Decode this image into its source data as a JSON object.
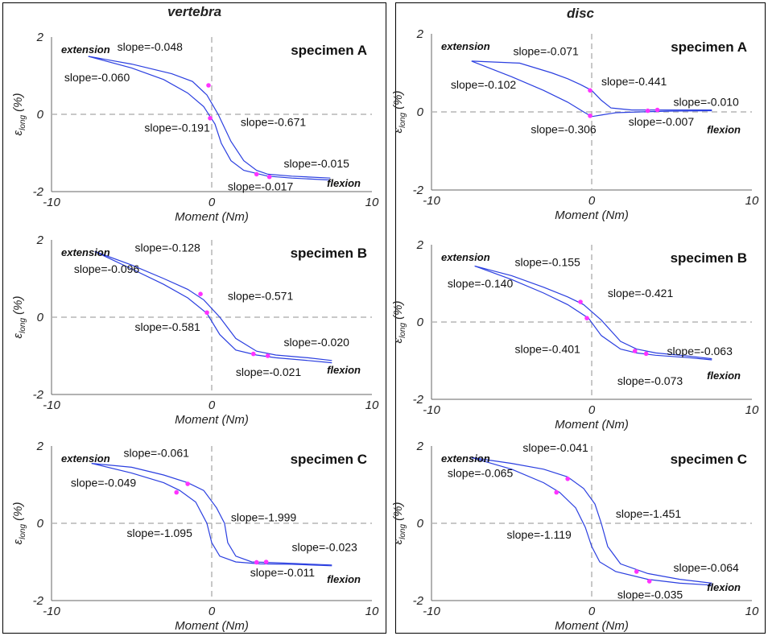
{
  "colors": {
    "vertebra_bg": "#d6e8f6",
    "vertebra_border": "#3d8fcc",
    "disc_bg": "#d9edd2",
    "disc_border": "#6aa84f",
    "curve": "#2b3fe0",
    "marker": "#ff33ff",
    "zero_line": "#b5b5b5",
    "axis": "#666666"
  },
  "columns": [
    {
      "title": "vertebra"
    },
    {
      "title": "disc"
    }
  ],
  "chart_data": [
    {
      "type": "line",
      "column": "vertebra",
      "specimen": "specimen A",
      "xlabel": "Moment (Nm)",
      "ylabel_main": "ε",
      "ylabel_sub": "long",
      "ylabel_unit": " (%)",
      "xlim": [
        -10,
        10
      ],
      "ylim": [
        -2,
        2
      ],
      "xticks": [
        "-10",
        "0",
        "10"
      ],
      "yticks": [
        "2",
        "0",
        "-2"
      ],
      "labels": {
        "extension": "extension",
        "flexion": "flexion"
      },
      "series": [
        {
          "x": [
            -7.7,
            -5,
            -2.5,
            -1.2,
            -0.3,
            0.4,
            1.2,
            2.0,
            2.8,
            3.5,
            5,
            7.4
          ],
          "y": [
            1.5,
            1.3,
            1.05,
            0.85,
            0.5,
            0.0,
            -0.7,
            -1.2,
            -1.45,
            -1.55,
            -1.6,
            -1.65
          ]
        },
        {
          "x": [
            -7.7,
            -5,
            -3,
            -1.5,
            -0.5,
            0.2,
            0.6,
            1.2,
            2.0,
            3.5,
            5,
            7.4
          ],
          "y": [
            1.5,
            1.2,
            0.9,
            0.55,
            0.2,
            -0.25,
            -0.75,
            -1.2,
            -1.45,
            -1.6,
            -1.65,
            -1.7
          ]
        }
      ],
      "markers": [
        {
          "x": -0.2,
          "y": 0.75
        },
        {
          "x": -0.1,
          "y": -0.1
        },
        {
          "x": 2.8,
          "y": -1.55
        },
        {
          "x": 3.6,
          "y": -1.62
        }
      ],
      "slopes": [
        {
          "text": "slope=-0.048",
          "x": -5.9,
          "y": 1.65
        },
        {
          "text": "slope=-0.060",
          "x": -9.2,
          "y": 0.85
        },
        {
          "text": "slope=-0.191",
          "x": -4.2,
          "y": -0.45
        },
        {
          "text": "slope=-0.671",
          "x": 1.8,
          "y": -0.3
        },
        {
          "text": "slope=-0.015",
          "x": 4.5,
          "y": -1.38
        },
        {
          "text": "slope=-0.017",
          "x": 1.0,
          "y": -1.97
        }
      ]
    },
    {
      "type": "line",
      "column": "disc",
      "specimen": "specimen A",
      "xlabel": "Moment (Nm)",
      "ylabel_main": "ε",
      "ylabel_sub": "long",
      "ylabel_unit": " (%)",
      "xlim": [
        -10,
        10
      ],
      "ylim": [
        -2,
        2
      ],
      "xticks": [
        "-10",
        "0",
        "10"
      ],
      "yticks": [
        "2",
        "0",
        "-2"
      ],
      "labels": {
        "extension": "extension",
        "flexion": "flexion"
      },
      "series": [
        {
          "x": [
            -7.5,
            -4.5,
            -2.5,
            -1.5,
            -0.7,
            0.0,
            0.6,
            1.2,
            2.5,
            4,
            7.5
          ],
          "y": [
            1.3,
            1.25,
            1.0,
            0.85,
            0.7,
            0.55,
            0.3,
            0.1,
            0.05,
            0.05,
            0.05
          ]
        },
        {
          "x": [
            -7.5,
            -5,
            -3,
            -1.5,
            -0.5,
            0.0,
            0.6,
            1.5,
            3,
            5,
            7.5
          ],
          "y": [
            1.3,
            0.9,
            0.55,
            0.25,
            0.0,
            -0.12,
            -0.08,
            -0.02,
            0.0,
            0.02,
            0.03
          ]
        }
      ],
      "markers": [
        {
          "x": -0.1,
          "y": 0.55
        },
        {
          "x": -0.1,
          "y": -0.1
        },
        {
          "x": 3.5,
          "y": 0.03
        },
        {
          "x": 4.1,
          "y": 0.05
        }
      ],
      "slopes": [
        {
          "text": "slope=-0.071",
          "x": -4.9,
          "y": 1.45
        },
        {
          "text": "slope=-0.102",
          "x": -8.8,
          "y": 0.6
        },
        {
          "text": "slope=-0.441",
          "x": 0.6,
          "y": 0.68
        },
        {
          "text": "slope=-0.010",
          "x": 5.1,
          "y": 0.15
        },
        {
          "text": "slope=-0.306",
          "x": -3.8,
          "y": -0.55
        },
        {
          "text": "slope=-0.007",
          "x": 2.3,
          "y": -0.35
        }
      ]
    },
    {
      "type": "line",
      "column": "vertebra",
      "specimen": "specimen B",
      "xlabel": "Moment (Nm)",
      "ylabel_main": "ε",
      "ylabel_sub": "long",
      "ylabel_unit": " (%)",
      "xlim": [
        -10,
        10
      ],
      "ylim": [
        -2,
        2
      ],
      "xticks": [
        "-10",
        "0",
        "10"
      ],
      "yticks": [
        "2",
        "0",
        "-2"
      ],
      "labels": {
        "extension": "extension",
        "flexion": "flexion"
      },
      "series": [
        {
          "x": [
            -7.3,
            -5,
            -3,
            -1.5,
            -0.5,
            0.5,
            1.5,
            2.8,
            4,
            6,
            7.5
          ],
          "y": [
            1.7,
            1.35,
            1.0,
            0.72,
            0.45,
            0.0,
            -0.55,
            -0.88,
            -0.98,
            -1.05,
            -1.12
          ]
        },
        {
          "x": [
            -7.3,
            -5,
            -3,
            -1.5,
            -0.3,
            0.5,
            1.5,
            2.8,
            4,
            6,
            7.5
          ],
          "y": [
            1.7,
            1.25,
            0.85,
            0.5,
            0.1,
            -0.45,
            -0.85,
            -0.98,
            -1.05,
            -1.12,
            -1.18
          ]
        }
      ],
      "markers": [
        {
          "x": -0.7,
          "y": 0.6
        },
        {
          "x": -0.3,
          "y": 0.12
        },
        {
          "x": 2.6,
          "y": -0.95
        },
        {
          "x": 3.5,
          "y": -1.0
        }
      ],
      "slopes": [
        {
          "text": "slope=-0.128",
          "x": -4.8,
          "y": 1.7
        },
        {
          "text": "slope=-0.096",
          "x": -8.6,
          "y": 1.15
        },
        {
          "text": "slope=-0.571",
          "x": 1.0,
          "y": 0.45
        },
        {
          "text": "slope=-0.581",
          "x": -4.8,
          "y": -0.35
        },
        {
          "text": "slope=-0.020",
          "x": 4.5,
          "y": -0.75
        },
        {
          "text": "slope=-0.021",
          "x": 1.5,
          "y": -1.52
        }
      ]
    },
    {
      "type": "line",
      "column": "disc",
      "specimen": "specimen B",
      "xlabel": "Moment (Nm)",
      "ylabel_main": "ε",
      "ylabel_sub": "long",
      "ylabel_unit": " (%)",
      "xlim": [
        -10,
        10
      ],
      "ylim": [
        -2,
        2
      ],
      "xticks": [
        "-10",
        "0",
        "10"
      ],
      "yticks": [
        "2",
        "0",
        "-2"
      ],
      "labels": {
        "extension": "extension",
        "flexion": "flexion"
      },
      "series": [
        {
          "x": [
            -7.3,
            -5,
            -3,
            -1.5,
            -0.5,
            0.6,
            1.8,
            2.8,
            4,
            6,
            7.5
          ],
          "y": [
            1.45,
            1.2,
            0.9,
            0.65,
            0.45,
            0.05,
            -0.5,
            -0.7,
            -0.8,
            -0.88,
            -0.95
          ]
        },
        {
          "x": [
            -7.3,
            -5,
            -3,
            -1.5,
            -0.2,
            0.6,
            1.8,
            2.8,
            4,
            6,
            7.5
          ],
          "y": [
            1.45,
            1.1,
            0.75,
            0.45,
            0.1,
            -0.35,
            -0.7,
            -0.8,
            -0.86,
            -0.92,
            -0.98
          ]
        }
      ],
      "markers": [
        {
          "x": -0.7,
          "y": 0.52
        },
        {
          "x": -0.3,
          "y": 0.1
        },
        {
          "x": 2.7,
          "y": -0.75
        },
        {
          "x": 3.4,
          "y": -0.82
        }
      ],
      "slopes": [
        {
          "text": "slope=-0.155",
          "x": -4.8,
          "y": 1.45
        },
        {
          "text": "slope=-0.140",
          "x": -9.0,
          "y": 0.9
        },
        {
          "text": "slope=-0.421",
          "x": 1.0,
          "y": 0.65
        },
        {
          "text": "slope=-0.401",
          "x": -4.8,
          "y": -0.8
        },
        {
          "text": "slope=-0.063",
          "x": 4.7,
          "y": -0.85
        },
        {
          "text": "slope=-0.073",
          "x": 1.6,
          "y": -1.62
        }
      ]
    },
    {
      "type": "line",
      "column": "vertebra",
      "specimen": "specimen C",
      "xlabel": "Moment (Nm)",
      "ylabel_main": "ε",
      "ylabel_sub": "long",
      "ylabel_unit": " (%)",
      "xlim": [
        -10,
        10
      ],
      "ylim": [
        -2,
        2
      ],
      "xticks": [
        "-10",
        "0",
        "10"
      ],
      "yticks": [
        "2",
        "0",
        "-2"
      ],
      "labels": {
        "extension": "extension",
        "flexion": "flexion"
      },
      "series": [
        {
          "x": [
            -7.5,
            -5,
            -3,
            -1.5,
            -0.5,
            0.3,
            0.8,
            1.0,
            1.5,
            2.5,
            4,
            7.5
          ],
          "y": [
            1.55,
            1.45,
            1.25,
            1.05,
            0.85,
            0.4,
            0.0,
            -0.5,
            -0.85,
            -1.0,
            -1.02,
            -1.08
          ]
        },
        {
          "x": [
            -7.5,
            -5,
            -3,
            -2,
            -1,
            -0.3,
            0.0,
            0.5,
            1.5,
            3,
            5,
            7.5
          ],
          "y": [
            1.55,
            1.3,
            1.05,
            0.85,
            0.55,
            0.0,
            -0.5,
            -0.85,
            -1.0,
            -1.05,
            -1.06,
            -1.1
          ]
        }
      ],
      "markers": [
        {
          "x": -2.2,
          "y": 0.8
        },
        {
          "x": -1.5,
          "y": 1.02
        },
        {
          "x": 2.8,
          "y": -1.01
        },
        {
          "x": 3.4,
          "y": -1.0
        }
      ],
      "slopes": [
        {
          "text": "slope=-0.061",
          "x": -5.5,
          "y": 1.72
        },
        {
          "text": "slope=-0.049",
          "x": -8.8,
          "y": 0.95
        },
        {
          "text": "slope=-1.999",
          "x": 1.2,
          "y": 0.05
        },
        {
          "text": "slope=-1.095",
          "x": -5.3,
          "y": -0.35
        },
        {
          "text": "slope=-0.023",
          "x": 5.0,
          "y": -0.72
        },
        {
          "text": "slope=-0.011",
          "x": 2.4,
          "y": -1.38
        }
      ]
    },
    {
      "type": "line",
      "column": "disc",
      "specimen": "specimen C",
      "xlabel": "Moment (Nm)",
      "ylabel_main": "ε",
      "ylabel_sub": "long",
      "ylabel_unit": " (%)",
      "xlim": [
        -10,
        10
      ],
      "ylim": [
        -2,
        2
      ],
      "xticks": [
        "-10",
        "0",
        "10"
      ],
      "yticks": [
        "2",
        "0",
        "-2"
      ],
      "labels": {
        "extension": "extension",
        "flexion": "flexion"
      },
      "series": [
        {
          "x": [
            -7.5,
            -5,
            -3,
            -1.5,
            -0.5,
            0.2,
            0.6,
            1.0,
            1.8,
            3.5,
            5.5,
            7.5
          ],
          "y": [
            1.7,
            1.55,
            1.4,
            1.2,
            0.9,
            0.5,
            0.0,
            -0.6,
            -1.05,
            -1.3,
            -1.45,
            -1.55
          ]
        },
        {
          "x": [
            -7.5,
            -5,
            -3,
            -2,
            -1,
            -0.4,
            0.0,
            0.5,
            1.5,
            3.5,
            5.5,
            7.5
          ],
          "y": [
            1.7,
            1.4,
            1.05,
            0.8,
            0.4,
            -0.1,
            -0.6,
            -1.0,
            -1.25,
            -1.45,
            -1.55,
            -1.6
          ]
        }
      ],
      "markers": [
        {
          "x": -2.2,
          "y": 0.8
        },
        {
          "x": -1.5,
          "y": 1.15
        },
        {
          "x": 2.8,
          "y": -1.25
        },
        {
          "x": 3.6,
          "y": -1.5
        }
      ],
      "slopes": [
        {
          "text": "slope=-0.041",
          "x": -4.3,
          "y": 1.85
        },
        {
          "text": "slope=-0.065",
          "x": -9.0,
          "y": 1.2
        },
        {
          "text": "slope=-1.451",
          "x": 1.5,
          "y": 0.15
        },
        {
          "text": "slope=-1.119",
          "x": -5.3,
          "y": -0.4
        },
        {
          "text": "slope=-0.064",
          "x": 5.1,
          "y": -1.25
        },
        {
          "text": "slope=-0.035",
          "x": 1.6,
          "y": -1.95
        }
      ]
    }
  ]
}
